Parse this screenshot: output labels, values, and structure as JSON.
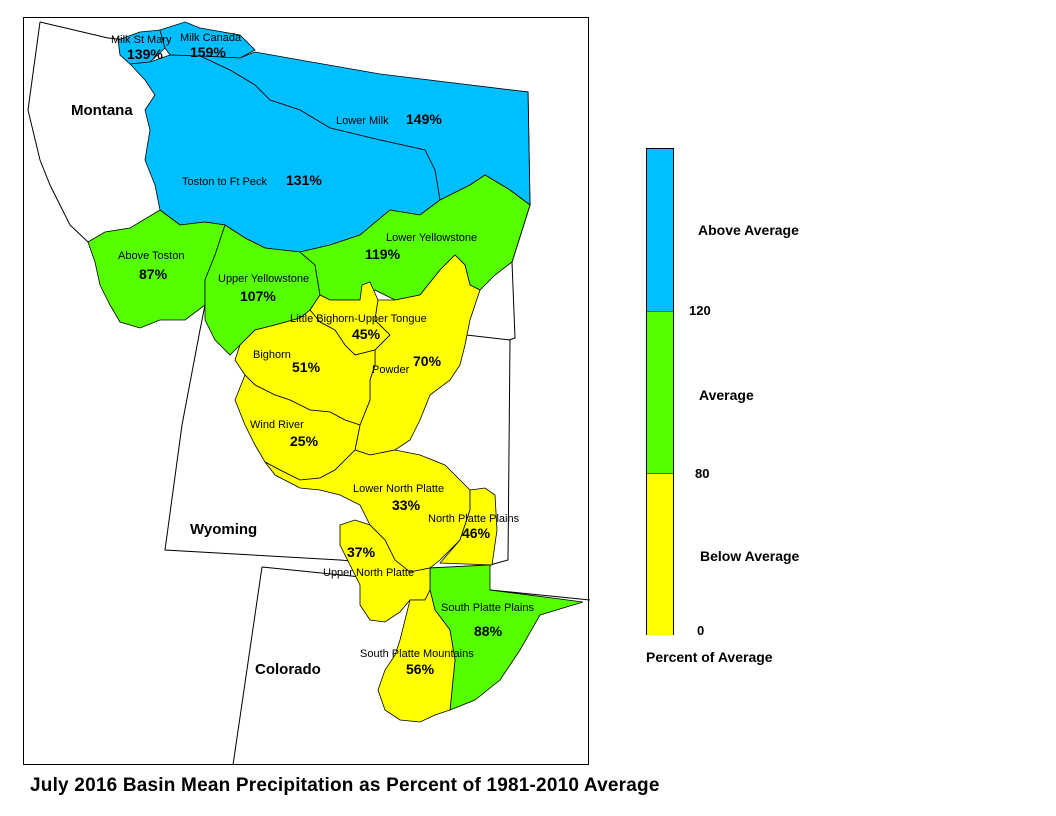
{
  "title": "July 2016 Basin Mean Precipitation as Percent of 1981-2010 Average",
  "colors": {
    "above": "#00BFFF",
    "average": "#55FF00",
    "below": "#FFFF00",
    "outline": "#000000"
  },
  "states": [
    {
      "id": "montana",
      "label": "Montana"
    },
    {
      "id": "wyoming",
      "label": "Wyoming"
    },
    {
      "id": "colorado",
      "label": "Colorado"
    }
  ],
  "basins": [
    {
      "id": "milk-st-mary",
      "name": "Milk St Mary",
      "pct": "139%",
      "category": "above"
    },
    {
      "id": "milk-canada",
      "name": "Milk Canada",
      "pct": "159%",
      "category": "above"
    },
    {
      "id": "lower-milk",
      "name": "Lower Milk",
      "pct": "149%",
      "category": "above"
    },
    {
      "id": "toston-ft-peck",
      "name": "Toston to Ft Peck",
      "pct": "131%",
      "category": "above"
    },
    {
      "id": "above-toston",
      "name": "Above Toston",
      "pct": "87%",
      "category": "average"
    },
    {
      "id": "upper-yellowstone",
      "name": "Upper Yellowstone",
      "pct": "107%",
      "category": "average"
    },
    {
      "id": "lower-yellowstone",
      "name": "Lower Yellowstone",
      "pct": "119%",
      "category": "average"
    },
    {
      "id": "little-bighorn",
      "name": "Little Bighorn-Upper Tongue",
      "pct": "45%",
      "category": "below"
    },
    {
      "id": "bighorn",
      "name": "Bighorn",
      "pct": "51%",
      "category": "below"
    },
    {
      "id": "powder",
      "name": "Powder",
      "pct": "70%",
      "category": "below"
    },
    {
      "id": "wind-river",
      "name": "Wind River",
      "pct": "25%",
      "category": "below"
    },
    {
      "id": "lower-north-platte",
      "name": "Lower North Platte",
      "pct": "33%",
      "category": "below"
    },
    {
      "id": "north-platte-plains",
      "name": "North Platte Plains",
      "pct": "46%",
      "category": "below"
    },
    {
      "id": "upper-north-platte",
      "name": "Upper North Platte",
      "pct": "37%",
      "category": "below"
    },
    {
      "id": "south-platte-plains",
      "name": "South Platte Plains",
      "pct": "88%",
      "category": "average"
    },
    {
      "id": "south-platte-mountains",
      "name": "South Platte Mountains",
      "pct": "56%",
      "category": "below"
    }
  ],
  "legend": {
    "title": "Percent of Average",
    "classes": [
      {
        "label": "Above Average",
        "color": "#00BFFF"
      },
      {
        "label": "Average",
        "color": "#55FF00"
      },
      {
        "label": "Below Average",
        "color": "#FFFF00"
      }
    ],
    "ticks": [
      "120",
      "80",
      "0"
    ]
  }
}
